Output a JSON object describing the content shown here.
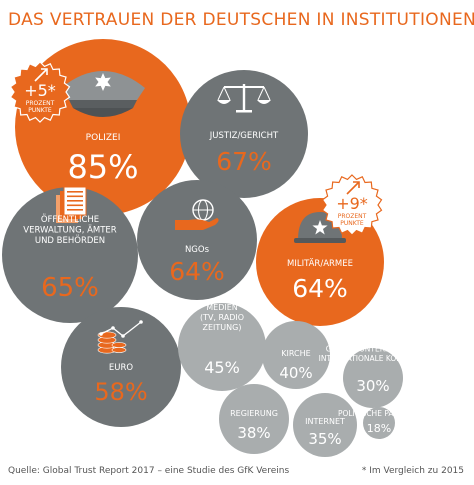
{
  "title": "DAS VERTRAUEN DER DEUTSCHEN IN INSTITUTIONEN",
  "source": "Quelle: Global Trust Report 2017 – eine Studie des GfK Vereins",
  "footnote": "* Im Vergleich zu 2015",
  "colors": {
    "orange": "#e8681e",
    "dark_gray": "#6f7476",
    "light_gray": "#a9adae",
    "icon_white": "#ffffff",
    "icon_gray": "#8e9294"
  },
  "chart_data": {
    "type": "bubble",
    "title": "DAS VERTRAUEN DER DEUTSCHEN IN INSTITUTIONEN",
    "unit": "%",
    "items": [
      {
        "key": "polizei",
        "label": [
          "POLIZEI"
        ],
        "value": 85,
        "display": "85%",
        "fill": "#e8681e",
        "value_color": "#ffffff",
        "label_color": "#ffffff",
        "icon": "police-cap-icon"
      },
      {
        "key": "justiz",
        "label": [
          "JUSTIZ/GERICHT"
        ],
        "value": 67,
        "display": "67%",
        "fill": "#6f7476",
        "value_color": "#e8681e",
        "label_color": "#ffffff",
        "icon": "scales-icon"
      },
      {
        "key": "verwaltung",
        "label": [
          "ÖFFENTLICHE",
          "VERWALTUNG, ÄMTER",
          "UND BEHÖRDEN"
        ],
        "value": 65,
        "display": "65%",
        "fill": "#6f7476",
        "value_color": "#e8681e",
        "label_color": "#ffffff",
        "icon": "documents-icon"
      },
      {
        "key": "ngos",
        "label": [
          "NGOs"
        ],
        "value": 64,
        "display": "64%",
        "fill": "#6f7476",
        "value_color": "#e8681e",
        "label_color": "#ffffff",
        "icon": "hand-globe-icon"
      },
      {
        "key": "militaer",
        "label": [
          "MILITÄR/ARMEE"
        ],
        "value": 64,
        "display": "64%",
        "fill": "#e8681e",
        "value_color": "#ffffff",
        "label_color": "#ffffff",
        "icon": "military-helmet-icon"
      },
      {
        "key": "euro",
        "label": [
          "EURO"
        ],
        "value": 58,
        "display": "58%",
        "fill": "#6f7476",
        "value_color": "#e8681e",
        "label_color": "#ffffff",
        "icon": "coins-chart-icon"
      },
      {
        "key": "medien",
        "label": [
          "MEDIEN",
          "(TV, RADIO",
          "ZEITUNG)"
        ],
        "value": 45,
        "display": "45%",
        "fill": "#a9adae",
        "value_color": "#ffffff",
        "label_color": "#ffffff",
        "icon": ""
      },
      {
        "key": "kirche",
        "label": [
          "KIRCHE"
        ],
        "value": 40,
        "display": "40%",
        "fill": "#a9adae",
        "value_color": "#ffffff",
        "label_color": "#ffffff",
        "icon": ""
      },
      {
        "key": "regierung",
        "label": [
          "REGIERUNG"
        ],
        "value": 38,
        "display": "38%",
        "fill": "#a9adae",
        "value_color": "#ffffff",
        "label_color": "#ffffff",
        "icon": ""
      },
      {
        "key": "internet",
        "label": [
          "INTERNET"
        ],
        "value": 35,
        "display": "35%",
        "fill": "#a9adae",
        "value_color": "#ffffff",
        "label_color": "#ffffff",
        "icon": ""
      },
      {
        "key": "konzerne",
        "label": [
          "GROSSE UNTERNEHMEN/",
          "INTERNATIONALE KONZERNE"
        ],
        "value": 30,
        "display": "30%",
        "fill": "#a9adae",
        "value_color": "#ffffff",
        "label_color": "#ffffff",
        "icon": ""
      },
      {
        "key": "parteien",
        "label": [
          "POLITISCHE PARTEIEN"
        ],
        "value": 18,
        "display": "18%",
        "fill": "#a9adae",
        "value_color": "#ffffff",
        "label_color": "#ffffff",
        "icon": ""
      }
    ],
    "badges": [
      {
        "key": "polizei",
        "change": "+5*",
        "unit": [
          "PROZENT",
          "PUNKTE"
        ],
        "value": 5,
        "icon": "arrow-up-right-icon"
      },
      {
        "key": "militaer",
        "change": "+9*",
        "unit": [
          "PROZENT",
          "PUNKTE"
        ],
        "value": 9,
        "icon": "arrow-up-right-icon"
      }
    ]
  }
}
